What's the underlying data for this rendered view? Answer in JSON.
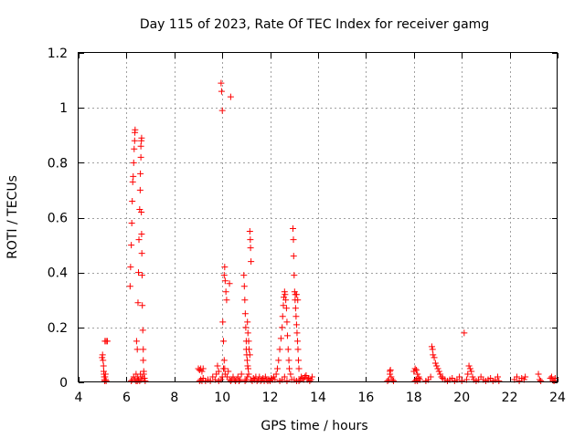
{
  "chart_data": {
    "type": "scatter",
    "title": "Day 115 of 2023, Rate Of TEC Index for receiver gamg",
    "xlabel": "GPS time / hours",
    "ylabel": "ROTI / TECUs",
    "xlim": [
      4,
      24
    ],
    "ylim": [
      0,
      1.2
    ],
    "xticks": [
      4,
      6,
      8,
      10,
      12,
      14,
      16,
      18,
      20,
      22,
      24
    ],
    "yticks": [
      0,
      0.2,
      0.4,
      0.6,
      0.8,
      1,
      1.2
    ],
    "xtick_labels": [
      "4",
      "6",
      "8",
      "10",
      "12",
      "14",
      "16",
      "18",
      "20",
      "22",
      "24"
    ],
    "ytick_labels": [
      "0",
      "0.2",
      "0.4",
      "0.6",
      "0.8",
      "1",
      "1.2"
    ],
    "grid": true,
    "legend": "none",
    "marker": "plus",
    "color": "#ff0000",
    "series": [
      {
        "points": [
          [
            4.98,
            0.09
          ],
          [
            5.0,
            0.1
          ],
          [
            5.02,
            0.08
          ],
          [
            5.04,
            0.06
          ],
          [
            5.05,
            0.04
          ],
          [
            5.06,
            0.03
          ],
          [
            5.07,
            0.02
          ],
          [
            5.08,
            0.01
          ],
          [
            5.09,
            0.005
          ],
          [
            5.1,
            0.02
          ],
          [
            5.12,
            0.03
          ],
          [
            5.13,
            0.01
          ],
          [
            5.15,
            0.005
          ],
          [
            5.1,
            0.15
          ],
          [
            5.15,
            0.15
          ],
          [
            5.2,
            0.15
          ],
          [
            6.15,
            0.35
          ],
          [
            6.17,
            0.42
          ],
          [
            6.2,
            0.5
          ],
          [
            6.22,
            0.58
          ],
          [
            6.24,
            0.66
          ],
          [
            6.26,
            0.73
          ],
          [
            6.28,
            0.75
          ],
          [
            6.3,
            0.8
          ],
          [
            6.32,
            0.85
          ],
          [
            6.34,
            0.88
          ],
          [
            6.35,
            0.91
          ],
          [
            6.36,
            0.92
          ],
          [
            6.2,
            0.005
          ],
          [
            6.25,
            0.01
          ],
          [
            6.3,
            0.02
          ],
          [
            6.35,
            0.01
          ],
          [
            6.4,
            0.03
          ],
          [
            6.42,
            0.15
          ],
          [
            6.45,
            0.12
          ],
          [
            6.48,
            0.29
          ],
          [
            6.5,
            0.4
          ],
          [
            6.52,
            0.52
          ],
          [
            6.55,
            0.63
          ],
          [
            6.57,
            0.7
          ],
          [
            6.58,
            0.76
          ],
          [
            6.6,
            0.82
          ],
          [
            6.6,
            0.86
          ],
          [
            6.62,
            0.88
          ],
          [
            6.63,
            0.89
          ],
          [
            6.55,
            0.005
          ],
          [
            6.6,
            0.01
          ],
          [
            6.65,
            0.02
          ],
          [
            6.62,
            0.62
          ],
          [
            6.63,
            0.54
          ],
          [
            6.64,
            0.47
          ],
          [
            6.65,
            0.39
          ],
          [
            6.66,
            0.28
          ],
          [
            6.68,
            0.19
          ],
          [
            6.7,
            0.12
          ],
          [
            6.7,
            0.08
          ],
          [
            6.72,
            0.04
          ],
          [
            6.72,
            0.03
          ],
          [
            6.75,
            0.015
          ],
          [
            6.78,
            0.005
          ],
          [
            6.45,
            0.005
          ],
          [
            6.5,
            0.01
          ],
          [
            6.58,
            0.03
          ],
          [
            6.47,
            0.02
          ],
          [
            6.4,
            0.005
          ],
          [
            9.0,
            0.05
          ],
          [
            9.05,
            0.045
          ],
          [
            9.1,
            0.05
          ],
          [
            9.15,
            0.04
          ],
          [
            9.2,
            0.05
          ],
          [
            9.05,
            0.005
          ],
          [
            9.1,
            0.01
          ],
          [
            9.15,
            0.005
          ],
          [
            9.2,
            0.015
          ],
          [
            9.3,
            0.005
          ],
          [
            9.4,
            0.01
          ],
          [
            9.5,
            0.005
          ],
          [
            9.6,
            0.02
          ],
          [
            9.7,
            0.01
          ],
          [
            9.75,
            0.03
          ],
          [
            9.8,
            0.06
          ],
          [
            9.85,
            0.04
          ],
          [
            9.85,
            0.005
          ],
          [
            9.95,
            1.09
          ],
          [
            9.97,
            1.06
          ],
          [
            10.0,
            0.99
          ],
          [
            10.02,
            0.22
          ],
          [
            10.05,
            0.15
          ],
          [
            10.08,
            0.08
          ],
          [
            10.1,
            0.05
          ],
          [
            10.12,
            0.03
          ],
          [
            10.1,
            0.42
          ],
          [
            10.08,
            0.39
          ],
          [
            10.12,
            0.37
          ],
          [
            10.15,
            0.33
          ],
          [
            10.18,
            0.3
          ],
          [
            10.05,
            0.05
          ],
          [
            10.0,
            0.02
          ],
          [
            9.95,
            0.01
          ],
          [
            10.2,
            0.02
          ],
          [
            10.25,
            0.04
          ],
          [
            10.3,
            0.36
          ],
          [
            10.35,
            1.04
          ],
          [
            10.3,
            0.01
          ],
          [
            10.35,
            0.005
          ],
          [
            10.4,
            0.01
          ],
          [
            10.45,
            0.02
          ],
          [
            10.5,
            0.01
          ],
          [
            10.55,
            0.005
          ],
          [
            10.6,
            0.01
          ],
          [
            10.65,
            0.02
          ],
          [
            10.7,
            0.005
          ],
          [
            10.75,
            0.01
          ],
          [
            10.8,
            0.03
          ],
          [
            10.9,
            0.39
          ],
          [
            10.92,
            0.35
          ],
          [
            10.94,
            0.3
          ],
          [
            10.96,
            0.25
          ],
          [
            10.98,
            0.2
          ],
          [
            11.0,
            0.15
          ],
          [
            11.0,
            0.12
          ],
          [
            11.02,
            0.1
          ],
          [
            11.04,
            0.08
          ],
          [
            11.06,
            0.06
          ],
          [
            11.08,
            0.05
          ],
          [
            10.95,
            0.005
          ],
          [
            11.0,
            0.01
          ],
          [
            11.05,
            0.02
          ],
          [
            11.1,
            0.03
          ],
          [
            11.05,
            0.22
          ],
          [
            11.07,
            0.18
          ],
          [
            11.1,
            0.15
          ],
          [
            11.12,
            0.12
          ],
          [
            11.15,
            0.1
          ],
          [
            11.15,
            0.55
          ],
          [
            11.17,
            0.52
          ],
          [
            11.18,
            0.49
          ],
          [
            11.2,
            0.44
          ],
          [
            11.2,
            0.01
          ],
          [
            11.25,
            0.005
          ],
          [
            11.3,
            0.015
          ],
          [
            11.35,
            0.01
          ],
          [
            11.4,
            0.02
          ],
          [
            11.45,
            0.005
          ],
          [
            11.5,
            0.01
          ],
          [
            11.55,
            0.02
          ],
          [
            11.6,
            0.005
          ],
          [
            11.65,
            0.01
          ],
          [
            11.7,
            0.015
          ],
          [
            11.75,
            0.005
          ],
          [
            11.8,
            0.02
          ],
          [
            11.85,
            0.01
          ],
          [
            11.9,
            0.005
          ],
          [
            11.95,
            0.01
          ],
          [
            12.0,
            0.005
          ],
          [
            12.05,
            0.015
          ],
          [
            12.1,
            0.01
          ],
          [
            12.15,
            0.02
          ],
          [
            12.2,
            0.01
          ],
          [
            12.25,
            0.03
          ],
          [
            12.3,
            0.05
          ],
          [
            12.35,
            0.08
          ],
          [
            12.4,
            0.12
          ],
          [
            12.45,
            0.16
          ],
          [
            12.5,
            0.2
          ],
          [
            12.52,
            0.24
          ],
          [
            12.55,
            0.28
          ],
          [
            12.57,
            0.31
          ],
          [
            12.6,
            0.33
          ],
          [
            12.62,
            0.32
          ],
          [
            12.65,
            0.3
          ],
          [
            12.68,
            0.27
          ],
          [
            12.7,
            0.22
          ],
          [
            12.72,
            0.17
          ],
          [
            12.75,
            0.12
          ],
          [
            12.78,
            0.08
          ],
          [
            12.8,
            0.05
          ],
          [
            12.85,
            0.03
          ],
          [
            12.9,
            0.01
          ],
          [
            12.4,
            0.005
          ],
          [
            12.5,
            0.01
          ],
          [
            12.6,
            0.02
          ],
          [
            12.7,
            0.005
          ],
          [
            12.95,
            0.56
          ],
          [
            12.97,
            0.52
          ],
          [
            12.98,
            0.46
          ],
          [
            13.0,
            0.39
          ],
          [
            13.02,
            0.33
          ],
          [
            13.04,
            0.3
          ],
          [
            13.06,
            0.27
          ],
          [
            13.08,
            0.24
          ],
          [
            13.1,
            0.21
          ],
          [
            13.12,
            0.18
          ],
          [
            13.14,
            0.15
          ],
          [
            13.16,
            0.12
          ],
          [
            13.18,
            0.08
          ],
          [
            13.2,
            0.05
          ],
          [
            13.05,
            0.32
          ],
          [
            13.1,
            0.32
          ],
          [
            13.15,
            0.3
          ],
          [
            13.2,
            0.005
          ],
          [
            13.25,
            0.01
          ],
          [
            13.3,
            0.02
          ],
          [
            13.35,
            0.015
          ],
          [
            13.4,
            0.01
          ],
          [
            13.45,
            0.02
          ],
          [
            13.5,
            0.025
          ],
          [
            13.55,
            0.01
          ],
          [
            13.6,
            0.015
          ],
          [
            13.65,
            0.005
          ],
          [
            13.7,
            0.01
          ],
          [
            13.75,
            0.02
          ],
          [
            13.0,
            0.01
          ],
          [
            13.1,
            0.005
          ],
          [
            16.9,
            0.005
          ],
          [
            16.95,
            0.01
          ],
          [
            17.0,
            0.03
          ],
          [
            17.02,
            0.045
          ],
          [
            17.05,
            0.02
          ],
          [
            17.1,
            0.01
          ],
          [
            17.15,
            0.005
          ],
          [
            17.0,
            0.04
          ],
          [
            18.0,
            0.04
          ],
          [
            18.05,
            0.05
          ],
          [
            18.1,
            0.045
          ],
          [
            18.15,
            0.03
          ],
          [
            18.2,
            0.02
          ],
          [
            18.25,
            0.01
          ],
          [
            18.05,
            0.005
          ],
          [
            18.1,
            0.01
          ],
          [
            18.15,
            0.005
          ],
          [
            18.2,
            0.015
          ],
          [
            18.5,
            0.005
          ],
          [
            18.6,
            0.01
          ],
          [
            18.7,
            0.02
          ],
          [
            18.75,
            0.13
          ],
          [
            18.78,
            0.12
          ],
          [
            18.8,
            0.1
          ],
          [
            18.85,
            0.09
          ],
          [
            18.9,
            0.07
          ],
          [
            18.95,
            0.06
          ],
          [
            19.0,
            0.05
          ],
          [
            19.05,
            0.04
          ],
          [
            19.1,
            0.03
          ],
          [
            19.15,
            0.02
          ],
          [
            19.2,
            0.015
          ],
          [
            19.3,
            0.01
          ],
          [
            19.4,
            0.005
          ],
          [
            19.5,
            0.01
          ],
          [
            19.6,
            0.015
          ],
          [
            19.7,
            0.005
          ],
          [
            19.8,
            0.01
          ],
          [
            19.9,
            0.02
          ],
          [
            20.0,
            0.005
          ],
          [
            20.1,
            0.18
          ],
          [
            20.2,
            0.01
          ],
          [
            20.25,
            0.03
          ],
          [
            20.3,
            0.06
          ],
          [
            20.35,
            0.05
          ],
          [
            20.4,
            0.04
          ],
          [
            20.45,
            0.02
          ],
          [
            20.5,
            0.01
          ],
          [
            20.6,
            0.005
          ],
          [
            20.7,
            0.01
          ],
          [
            20.8,
            0.02
          ],
          [
            20.9,
            0.01
          ],
          [
            21.0,
            0.005
          ],
          [
            21.1,
            0.01
          ],
          [
            21.2,
            0.015
          ],
          [
            21.3,
            0.005
          ],
          [
            21.4,
            0.01
          ],
          [
            21.5,
            0.02
          ],
          [
            21.55,
            0.005
          ],
          [
            22.2,
            0.01
          ],
          [
            22.3,
            0.02
          ],
          [
            22.4,
            0.005
          ],
          [
            22.5,
            0.015
          ],
          [
            22.6,
            0.01
          ],
          [
            22.65,
            0.02
          ],
          [
            23.2,
            0.03
          ],
          [
            23.25,
            0.01
          ],
          [
            23.3,
            0.005
          ],
          [
            23.7,
            0.015
          ],
          [
            23.75,
            0.02
          ],
          [
            23.8,
            0.01
          ],
          [
            23.85,
            0.005
          ],
          [
            23.9,
            0.015
          ]
        ]
      }
    ]
  }
}
